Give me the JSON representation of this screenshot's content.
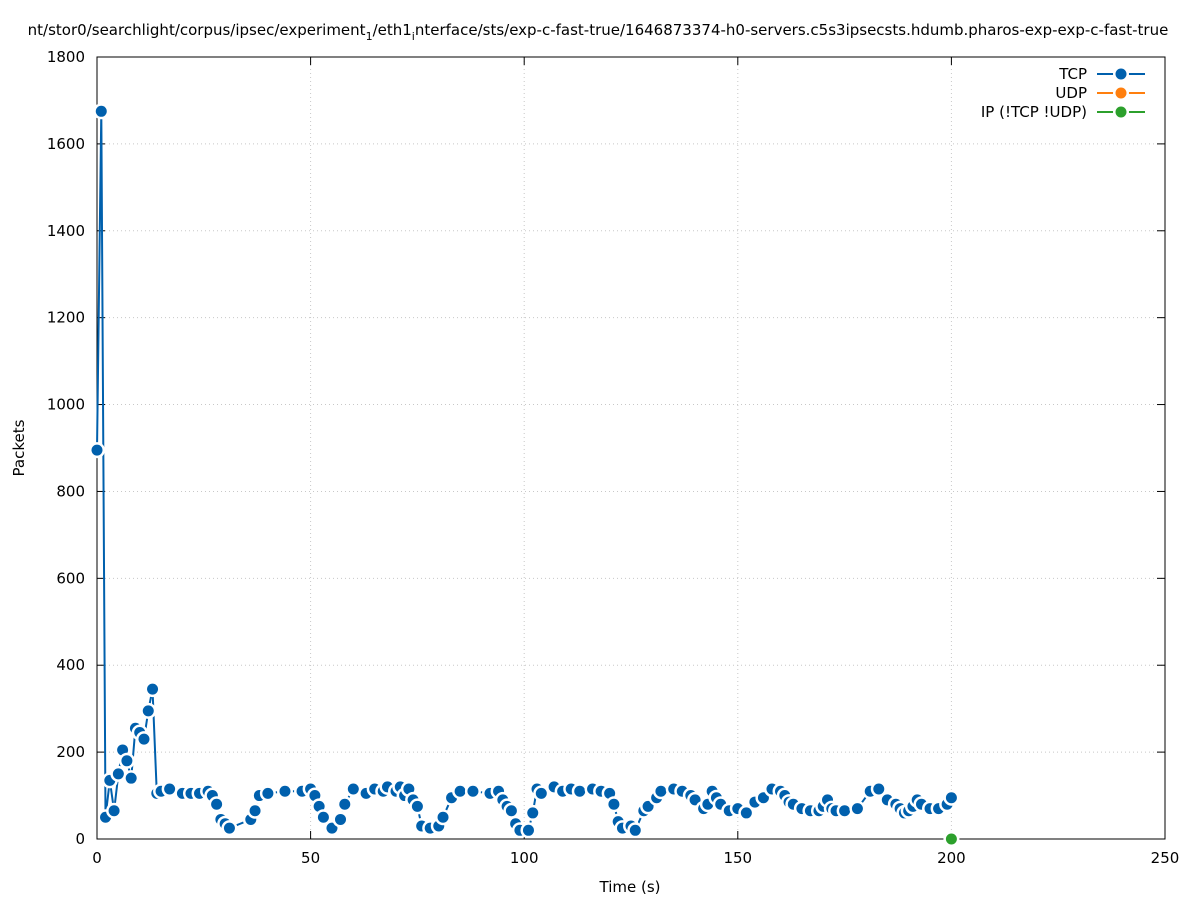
{
  "chart_data": {
    "type": "line",
    "title_parts": {
      "a": "nt/stor0/searchlight/corpus/ipsec/experiment",
      "a_sub": "1",
      "b": "/eth1",
      "b_sub": "i",
      "c": "nterface/sts/exp-c-fast-true/1646873374-h0-servers.c5s3ipsecsts.hdumb.pharos-exp-exp-c-fast-true"
    },
    "xlabel": "Time (s)",
    "ylabel": "Packets",
    "xlim": [
      0,
      250
    ],
    "ylim": [
      0,
      1800
    ],
    "xticks": [
      0,
      50,
      100,
      150,
      200,
      250
    ],
    "yticks": [
      0,
      200,
      400,
      600,
      800,
      1000,
      1200,
      1400,
      1600,
      1800
    ],
    "grid": true,
    "legend_position": "top-right",
    "series": [
      {
        "name": "TCP",
        "color": "#0060ad",
        "points": [
          [
            0,
            895
          ],
          [
            1,
            1675
          ],
          [
            2,
            50
          ],
          [
            3,
            135
          ],
          [
            4,
            65
          ],
          [
            5,
            150
          ],
          [
            6,
            205
          ],
          [
            7,
            180
          ],
          [
            8,
            140
          ],
          [
            9,
            255
          ],
          [
            10,
            245
          ],
          [
            11,
            230
          ],
          [
            12,
            295
          ],
          [
            13,
            345
          ],
          [
            14,
            105
          ],
          [
            15,
            110
          ],
          [
            17,
            115
          ],
          [
            20,
            105
          ],
          [
            22,
            105
          ],
          [
            24,
            105
          ],
          [
            26,
            110
          ],
          [
            27,
            100
          ],
          [
            28,
            80
          ],
          [
            29,
            45
          ],
          [
            30,
            35
          ],
          [
            31,
            25
          ],
          [
            36,
            45
          ],
          [
            37,
            65
          ],
          [
            38,
            100
          ],
          [
            40,
            105
          ],
          [
            44,
            110
          ],
          [
            48,
            110
          ],
          [
            50,
            115
          ],
          [
            51,
            100
          ],
          [
            52,
            75
          ],
          [
            53,
            50
          ],
          [
            55,
            25
          ],
          [
            57,
            45
          ],
          [
            58,
            80
          ],
          [
            60,
            115
          ],
          [
            63,
            105
          ],
          [
            65,
            115
          ],
          [
            67,
            110
          ],
          [
            68,
            120
          ],
          [
            70,
            110
          ],
          [
            71,
            120
          ],
          [
            72,
            100
          ],
          [
            73,
            115
          ],
          [
            74,
            90
          ],
          [
            75,
            75
          ],
          [
            76,
            30
          ],
          [
            78,
            25
          ],
          [
            80,
            30
          ],
          [
            81,
            50
          ],
          [
            83,
            95
          ],
          [
            85,
            110
          ],
          [
            88,
            110
          ],
          [
            92,
            105
          ],
          [
            94,
            110
          ],
          [
            95,
            90
          ],
          [
            96,
            75
          ],
          [
            97,
            65
          ],
          [
            98,
            35
          ],
          [
            99,
            20
          ],
          [
            101,
            20
          ],
          [
            102,
            60
          ],
          [
            103,
            115
          ],
          [
            104,
            105
          ],
          [
            107,
            120
          ],
          [
            109,
            110
          ],
          [
            111,
            115
          ],
          [
            113,
            110
          ],
          [
            116,
            115
          ],
          [
            118,
            110
          ],
          [
            120,
            105
          ],
          [
            121,
            80
          ],
          [
            122,
            40
          ],
          [
            123,
            25
          ],
          [
            125,
            30
          ],
          [
            126,
            20
          ],
          [
            128,
            65
          ],
          [
            129,
            75
          ],
          [
            131,
            95
          ],
          [
            132,
            110
          ],
          [
            135,
            115
          ],
          [
            137,
            110
          ],
          [
            139,
            100
          ],
          [
            140,
            90
          ],
          [
            142,
            70
          ],
          [
            143,
            80
          ],
          [
            144,
            110
          ],
          [
            145,
            95
          ],
          [
            146,
            80
          ],
          [
            148,
            65
          ],
          [
            150,
            70
          ],
          [
            152,
            60
          ],
          [
            154,
            85
          ],
          [
            156,
            95
          ],
          [
            158,
            115
          ],
          [
            160,
            110
          ],
          [
            161,
            100
          ],
          [
            162,
            85
          ],
          [
            163,
            80
          ],
          [
            165,
            70
          ],
          [
            167,
            65
          ],
          [
            169,
            65
          ],
          [
            170,
            75
          ],
          [
            171,
            90
          ],
          [
            172,
            70
          ],
          [
            173,
            65
          ],
          [
            175,
            65
          ],
          [
            178,
            70
          ],
          [
            181,
            110
          ],
          [
            183,
            115
          ],
          [
            185,
            90
          ],
          [
            187,
            80
          ],
          [
            188,
            70
          ],
          [
            189,
            60
          ],
          [
            190,
            65
          ],
          [
            191,
            75
          ],
          [
            192,
            90
          ],
          [
            193,
            80
          ],
          [
            195,
            70
          ],
          [
            197,
            70
          ],
          [
            199,
            80
          ],
          [
            200,
            95
          ]
        ]
      },
      {
        "name": "UDP",
        "color": "#ff7f0e",
        "points": []
      },
      {
        "name": "IP (!TCP  !UDP)",
        "color": "#2ca02c",
        "points": [
          [
            200,
            0
          ]
        ]
      }
    ]
  }
}
